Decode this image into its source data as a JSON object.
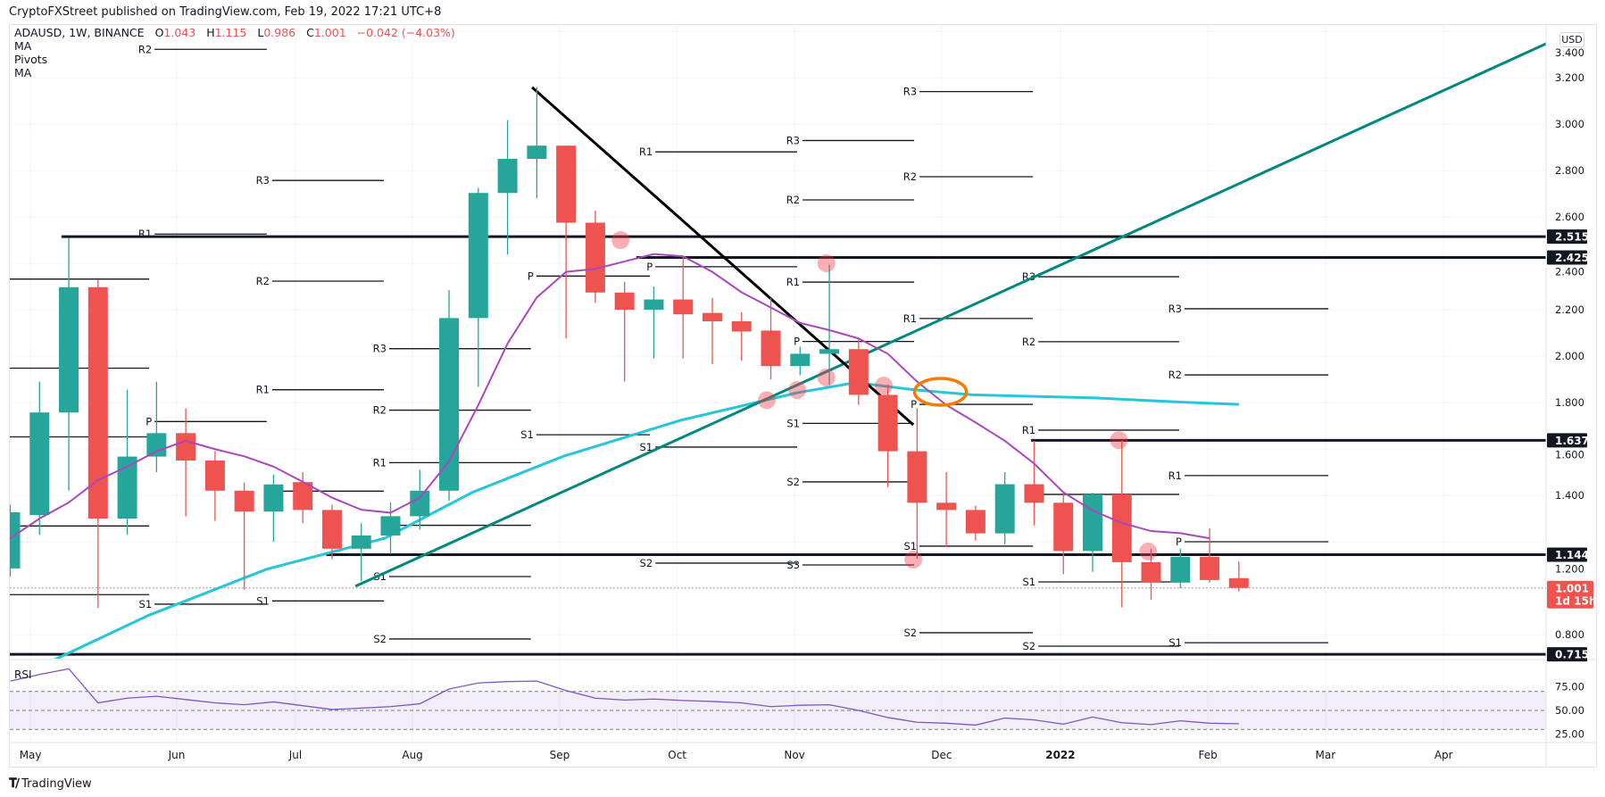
{
  "header": {
    "published": "CryptoFXStreet published on TradingView.com, Feb 19, 2022 17:21 UTC+8"
  },
  "legend": {
    "symbol": "ADAUSD, 1W, BINANCE",
    "o_label": "O",
    "o": "1.043",
    "h_label": "H",
    "h": "1.115",
    "l_label": "L",
    "l": "0.986",
    "c_label": "C",
    "c": "1.001",
    "change": "−0.042 (−4.03%)",
    "indicators": [
      "MA",
      "Pivots",
      "MA"
    ]
  },
  "currency": "USD",
  "footer": {
    "brand": "TradingView",
    "logo_icon": "tradingview-logo-icon"
  },
  "colors": {
    "up": "#26a69a",
    "down": "#ef5350",
    "ma_fast": "#ab47bc",
    "ma_slow": "#26c6da",
    "trend_up": "#00897b",
    "trend_down": "#000000",
    "level": "#131722",
    "marker": "#f23645",
    "circle": "#f57c00",
    "rsi": "#7e57c2"
  },
  "chart_data": {
    "type": "candlestick",
    "title": "ADAUSD, 1W, BINANCE",
    "ylabel": "USD",
    "ylim": [
      0.7,
      3.43
    ],
    "price_ticks": [
      "3.400",
      "3.200",
      "3.000",
      "2.800",
      "2.600",
      "2.400",
      "2.200",
      "2.000",
      "1.800",
      "1.600",
      "1.400",
      "1.200",
      "0.800"
    ],
    "time_labels": [
      {
        "label": "May",
        "week": 0.69
      },
      {
        "label": "Jun",
        "week": 5.69
      },
      {
        "label": "Jul",
        "week": 9.75
      },
      {
        "label": "Aug",
        "week": 13.75
      },
      {
        "label": "Sep",
        "week": 18.78
      },
      {
        "label": "Oct",
        "week": 22.8
      },
      {
        "label": "Nov",
        "week": 26.81
      },
      {
        "label": "Dec",
        "week": 31.84
      },
      {
        "label": "2022",
        "week": 35.9,
        "bold": true
      },
      {
        "label": "Feb",
        "week": 40.94
      },
      {
        "label": "Mar",
        "week": 44.96
      },
      {
        "label": "Apr",
        "week": 49.0
      }
    ],
    "candles_ohlc": [
      [
        1.085,
        1.36,
        1.05,
        1.327
      ],
      [
        1.315,
        1.89,
        1.23,
        1.757
      ],
      [
        1.757,
        2.51,
        1.42,
        2.297
      ],
      [
        2.297,
        2.33,
        0.915,
        1.3
      ],
      [
        1.3,
        1.855,
        1.23,
        1.567
      ],
      [
        1.567,
        1.89,
        1.5,
        1.668
      ],
      [
        1.668,
        1.775,
        1.31,
        1.55
      ],
      [
        1.55,
        1.59,
        1.29,
        1.42
      ],
      [
        1.42,
        1.455,
        0.993,
        1.33
      ],
      [
        1.33,
        1.49,
        1.2,
        1.447
      ],
      [
        1.457,
        1.5,
        1.28,
        1.337
      ],
      [
        1.337,
        1.36,
        1.125,
        1.17
      ],
      [
        1.17,
        1.28,
        1.03,
        1.227
      ],
      [
        1.227,
        1.37,
        1.148,
        1.31
      ],
      [
        1.31,
        1.51,
        1.253,
        1.42
      ],
      [
        1.42,
        2.284,
        1.377,
        2.164
      ],
      [
        2.164,
        2.725,
        1.868,
        2.703
      ],
      [
        2.703,
        3.017,
        2.438,
        2.85
      ],
      [
        2.85,
        3.159,
        2.68,
        2.907
      ],
      [
        2.907,
        2.907,
        2.076,
        2.575
      ],
      [
        2.575,
        2.627,
        2.23,
        2.274
      ],
      [
        2.274,
        2.32,
        1.89,
        2.2
      ],
      [
        2.2,
        2.3,
        1.99,
        2.244
      ],
      [
        2.244,
        2.43,
        1.99,
        2.18
      ],
      [
        2.186,
        2.25,
        1.965,
        2.15
      ],
      [
        2.15,
        2.19,
        1.98,
        2.106
      ],
      [
        2.11,
        2.25,
        1.9,
        1.957
      ],
      [
        1.957,
        2.04,
        1.917,
        2.01
      ],
      [
        2.01,
        2.394,
        1.877,
        2.03
      ],
      [
        2.03,
        2.076,
        1.79,
        1.833
      ],
      [
        1.833,
        1.877,
        1.435,
        1.59
      ],
      [
        1.59,
        1.776,
        1.127,
        1.368
      ],
      [
        1.368,
        1.5,
        1.18,
        1.337
      ],
      [
        1.337,
        1.355,
        1.205,
        1.236
      ],
      [
        1.236,
        1.5,
        1.19,
        1.448
      ],
      [
        1.448,
        1.635,
        1.27,
        1.368
      ],
      [
        1.368,
        1.41,
        1.06,
        1.16
      ],
      [
        1.16,
        1.41,
        1.07,
        1.404
      ],
      [
        1.404,
        1.636,
        0.917,
        1.112
      ],
      [
        1.112,
        1.17,
        0.95,
        1.024
      ],
      [
        1.024,
        1.17,
        1.0,
        1.135
      ],
      [
        1.135,
        1.258,
        1.024,
        1.035
      ],
      [
        1.043,
        1.115,
        0.986,
        1.001
      ]
    ],
    "ma_fast": [
      1.215,
      1.3,
      1.369,
      1.466,
      1.524,
      1.59,
      1.635,
      1.599,
      1.568,
      1.524,
      1.458,
      1.39,
      1.338,
      1.325,
      1.39,
      1.546,
      1.789,
      2.054,
      2.253,
      2.363,
      2.376,
      2.408,
      2.44,
      2.43,
      2.363,
      2.275,
      2.209,
      2.143,
      2.112,
      2.076,
      2.01,
      1.89,
      1.789,
      1.714,
      1.635,
      1.537,
      1.413,
      1.334,
      1.281,
      1.246,
      1.237,
      1.215
    ],
    "ma_slow": [
      [
        1.4,
        0.685
      ],
      [
        4.73,
        0.883
      ],
      [
        8.77,
        1.082
      ],
      [
        12.8,
        1.215
      ],
      [
        15.8,
        1.413
      ],
      [
        18.9,
        1.568
      ],
      [
        22.9,
        1.723
      ],
      [
        26.9,
        1.842
      ],
      [
        28.9,
        1.886
      ],
      [
        30.9,
        1.855
      ],
      [
        32.9,
        1.833
      ],
      [
        37,
        1.82
      ],
      [
        40,
        1.802
      ],
      [
        42,
        1.792
      ]
    ],
    "pivots": [
      {
        "from": -0.5,
        "to": 4.75,
        "levels": [
          {
            "label": "",
            "price": 2.332
          },
          {
            "label": "",
            "price": 1.948
          },
          {
            "label": "",
            "price": 1.652
          },
          {
            "label": "",
            "price": 1.268
          },
          {
            "label": "",
            "price": 0.972
          }
        ]
      },
      {
        "from": 4.75,
        "to": 8.77,
        "levels": [
          {
            "label": "R2",
            "price": 3.322
          },
          {
            "label": "R1",
            "price": 2.526
          },
          {
            "label": "P",
            "price": 1.718
          },
          {
            "label": "S1",
            "price": 0.931
          }
        ]
      },
      {
        "from": 8.77,
        "to": 12.77,
        "levels": [
          {
            "label": "R3",
            "price": 2.757
          },
          {
            "label": "R2",
            "price": 2.323
          },
          {
            "label": "R1",
            "price": 1.855
          },
          {
            "label": "P",
            "price": 1.418
          },
          {
            "label": "S1",
            "price": 0.945
          }
        ]
      },
      {
        "from": 12.77,
        "to": 17.8,
        "levels": [
          {
            "label": "R3",
            "price": 2.032
          },
          {
            "label": "R2",
            "price": 1.767
          },
          {
            "label": "R1",
            "price": 1.541
          },
          {
            "label": "P",
            "price": 1.271
          },
          {
            "label": "S1",
            "price": 1.05
          },
          {
            "label": "S2",
            "price": 0.781
          }
        ]
      },
      {
        "from": 17.8,
        "to": 21.87,
        "levels": [
          {
            "label": "P",
            "price": 2.345
          },
          {
            "label": "S1",
            "price": 1.661
          }
        ]
      },
      {
        "from": 21.87,
        "to": 26.9,
        "levels": [
          {
            "label": "R1",
            "price": 2.88
          },
          {
            "label": "P",
            "price": 2.385
          },
          {
            "label": "S1",
            "price": 1.608
          },
          {
            "label": "S2",
            "price": 1.108
          }
        ]
      },
      {
        "from": 26.9,
        "to": 30.9,
        "levels": [
          {
            "label": "R3",
            "price": 2.929
          },
          {
            "label": "R2",
            "price": 2.673
          },
          {
            "label": "R1",
            "price": 2.319
          },
          {
            "label": "P",
            "price": 2.063
          },
          {
            "label": "S1",
            "price": 1.71
          },
          {
            "label": "S2",
            "price": 1.458
          },
          {
            "label": "S3",
            "price": 1.1
          }
        ]
      },
      {
        "from": 30.9,
        "to": 34.96,
        "levels": [
          {
            "label": "R3",
            "price": 3.14
          },
          {
            "label": "R2",
            "price": 2.773
          },
          {
            "label": "R1",
            "price": 2.162
          },
          {
            "label": "P",
            "price": 1.792
          },
          {
            "label": "S1",
            "price": 1.181
          },
          {
            "label": "S2",
            "price": 0.808
          }
        ]
      },
      {
        "from": 34.96,
        "to": 39.96,
        "levels": [
          {
            "label": "R3",
            "price": 2.342
          },
          {
            "label": "R2",
            "price": 2.062
          },
          {
            "label": "R1",
            "price": 1.681
          },
          {
            "label": "P",
            "price": 1.404
          },
          {
            "label": "S1",
            "price": 1.027
          },
          {
            "label": "S2",
            "price": 0.75
          }
        ]
      },
      {
        "from": 39.96,
        "to": 45.06,
        "levels": [
          {
            "label": "R3",
            "price": 2.204
          },
          {
            "label": "R2",
            "price": 1.919
          },
          {
            "label": "R1",
            "price": 1.485
          },
          {
            "label": "P",
            "price": 1.2
          },
          {
            "label": "S1",
            "price": 0.765
          }
        ]
      }
    ],
    "horizontal_levels": [
      {
        "label": "2.515",
        "price": 2.515,
        "from": 1.75
      },
      {
        "label": "2.425",
        "price": 2.425,
        "from": 21.4
      },
      {
        "label": "1.637",
        "price": 1.637,
        "from": 34.9
      },
      {
        "label": "1.144",
        "price": 1.144,
        "from": 10.8
      },
      {
        "label": "0.715",
        "price": 0.715,
        "from": -0.5
      }
    ],
    "current_price": {
      "label": "1.001",
      "price": 1.001,
      "countdown": "1d 15h"
    },
    "trendlines": [
      {
        "name": "ascending-trendline",
        "from": [
          11.8,
          1.008
        ],
        "to": [
          52.5,
          3.346
        ]
      },
      {
        "name": "descending-trendline",
        "from": [
          17.84,
          3.158
        ],
        "to": [
          30.87,
          1.704
        ]
      }
    ],
    "markers": [
      [
        20.86,
        2.5
      ],
      [
        27.9,
        2.4
      ],
      [
        29.86,
        1.873
      ],
      [
        27.9,
        1.908
      ],
      [
        26.9,
        1.854
      ],
      [
        25.86,
        1.81
      ],
      [
        30.87,
        1.123
      ],
      [
        37.9,
        1.638
      ],
      [
        38.9,
        1.158
      ]
    ],
    "circle_annotation": [
      31.8,
      1.846
    ],
    "rsi": {
      "label": "RSI",
      "ticks": [
        "75.00",
        "50.00",
        "25.00"
      ],
      "band": [
        30,
        70
      ],
      "values": [
        81,
        88,
        94,
        58,
        63,
        65,
        61.5,
        58,
        56,
        59,
        55,
        51,
        52.5,
        54,
        57,
        72.6,
        79,
        80.5,
        81,
        71,
        63,
        61,
        62,
        60.5,
        59.5,
        58,
        54,
        55.5,
        56,
        50,
        42.5,
        37.5,
        36.5,
        34.5,
        42,
        40,
        35.5,
        43,
        37,
        35,
        39,
        36.5,
        36
      ]
    }
  }
}
